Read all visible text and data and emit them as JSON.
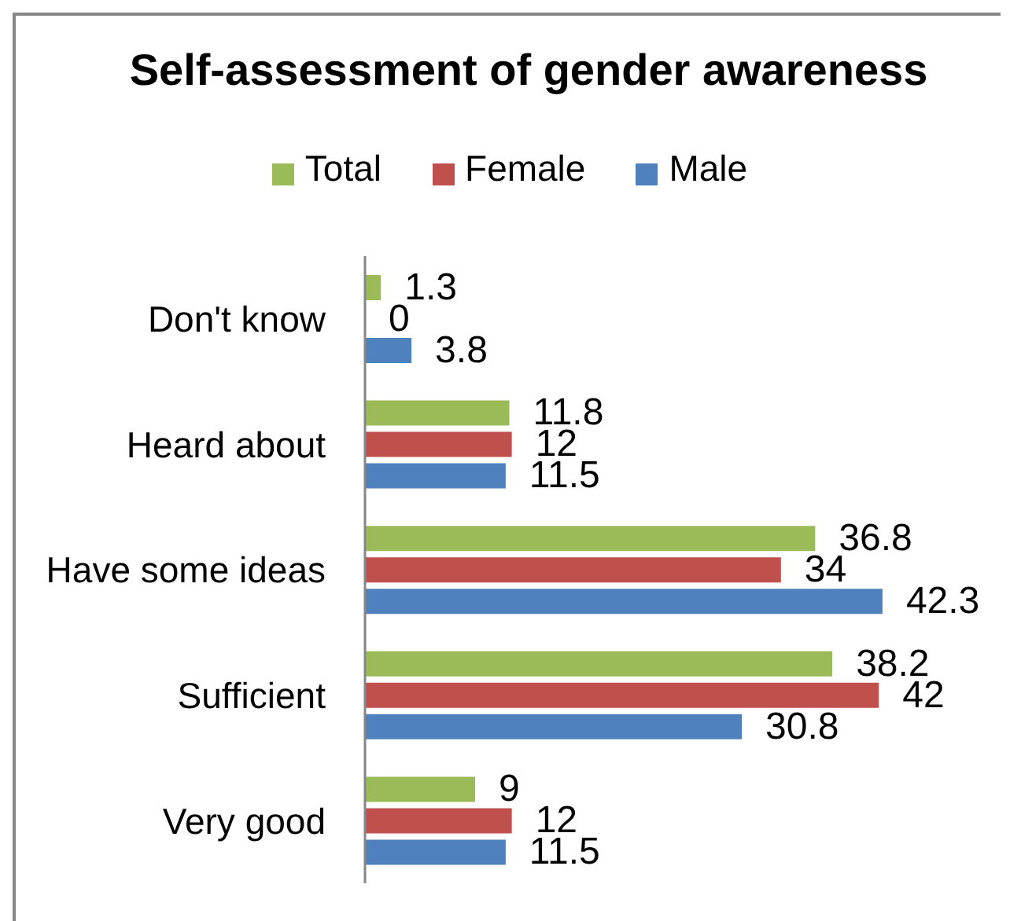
{
  "chart_data": {
    "type": "bar",
    "orientation": "horizontal",
    "title": "Self-assessment of gender awareness",
    "categories": [
      "Don't know",
      "Heard about",
      "Have some ideas",
      "Sufficient",
      "Very good"
    ],
    "series": [
      {
        "name": "Total",
        "color": "#9bbb59",
        "values": [
          1.3,
          11.8,
          36.8,
          38.2,
          9
        ]
      },
      {
        "name": "Female",
        "color": "#c0504d",
        "values": [
          0,
          12,
          34,
          42,
          12
        ]
      },
      {
        "name": "Male",
        "color": "#4f81bd",
        "values": [
          3.8,
          11.5,
          42.3,
          30.8,
          11.5
        ]
      }
    ],
    "data_labels": true,
    "legend": "top",
    "tick_labels": "y"
  }
}
